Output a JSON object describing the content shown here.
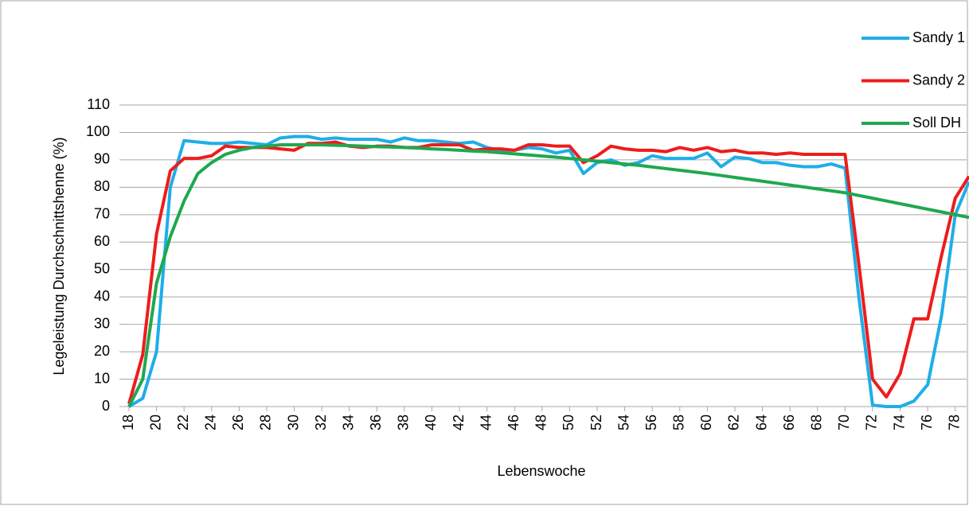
{
  "chart_data": {
    "type": "line",
    "y_label": "Legeleistung Durchschnittshenne (%)",
    "x_label": "Lebenswoche",
    "x": [
      18,
      19,
      20,
      21,
      22,
      23,
      24,
      25,
      26,
      27,
      28,
      29,
      30,
      31,
      32,
      33,
      34,
      35,
      36,
      37,
      38,
      39,
      40,
      41,
      42,
      43,
      44,
      45,
      46,
      47,
      48,
      49,
      50,
      51,
      52,
      53,
      54,
      55,
      56,
      57,
      58,
      59,
      60,
      61,
      62,
      63,
      64,
      65,
      66,
      67,
      68,
      69,
      70,
      71,
      72,
      73,
      74,
      75,
      76,
      77,
      78,
      79
    ],
    "xlim": [
      18,
      79
    ],
    "xticks": [
      18,
      20,
      22,
      24,
      26,
      28,
      30,
      32,
      34,
      36,
      38,
      40,
      42,
      44,
      46,
      48,
      50,
      52,
      54,
      56,
      58,
      60,
      62,
      64,
      66,
      68,
      70,
      72,
      74,
      76,
      78
    ],
    "ylim": [
      0,
      110
    ],
    "yticks": [
      0,
      10,
      20,
      30,
      40,
      50,
      60,
      70,
      80,
      90,
      100,
      110
    ],
    "grid": true,
    "legend": "top-right",
    "series": [
      {
        "name": "Sandy 1",
        "color": "#1eaee8",
        "values": [
          0,
          3,
          20,
          80,
          97,
          96.5,
          96,
          96,
          96.5,
          96,
          95.5,
          98,
          98.5,
          98.5,
          97.5,
          98,
          97.5,
          97.5,
          97.5,
          96.5,
          98,
          97,
          97,
          96.5,
          96,
          96.5,
          94.5,
          93.5,
          93.5,
          94.5,
          94,
          92.5,
          93.5,
          85,
          89,
          90,
          88,
          89,
          91.5,
          90.5,
          90.5,
          90.5,
          92.5,
          87.5,
          91,
          90.5,
          89,
          89,
          88,
          87.5,
          87.5,
          88.5,
          87,
          40,
          0.5,
          0,
          0,
          2,
          8,
          33,
          70,
          82
        ]
      },
      {
        "name": "Sandy 2",
        "color": "#ee1c1c",
        "values": [
          1,
          19,
          63,
          86,
          90.5,
          90.5,
          91.5,
          95,
          94.5,
          94.5,
          94.5,
          94,
          93.5,
          96,
          96,
          96.5,
          95,
          94.5,
          95,
          95,
          94.5,
          94.5,
          95.5,
          95.5,
          95.5,
          93.5,
          94,
          94,
          93.5,
          95.5,
          95.5,
          95,
          95,
          89,
          91.5,
          95,
          94,
          93.5,
          93.5,
          93,
          94.5,
          93.5,
          94.5,
          93,
          93.5,
          92.5,
          92.5,
          92,
          92.5,
          92,
          92,
          92,
          92,
          52,
          10,
          3.5,
          12,
          32,
          32,
          55,
          76,
          84
        ]
      },
      {
        "name": "Soll DH",
        "color": "#1fa84f",
        "values": [
          0,
          10,
          45,
          62,
          75,
          85,
          89,
          92,
          93.5,
          94.5,
          95,
          95.5,
          95.5,
          95.5,
          95.5,
          95.3,
          95.2,
          95,
          94.8,
          94.7,
          94.5,
          94.3,
          94,
          93.8,
          93.5,
          93.2,
          93,
          92.6,
          92.2,
          91.8,
          91.4,
          91,
          90.5,
          90,
          89.5,
          89,
          88.5,
          88,
          87.4,
          86.8,
          86.2,
          85.6,
          85,
          84.3,
          83.6,
          82.9,
          82.2,
          81.5,
          80.8,
          80.1,
          79.4,
          78.7,
          78,
          77,
          76,
          75,
          74,
          73,
          72,
          71,
          70,
          69
        ]
      }
    ]
  }
}
